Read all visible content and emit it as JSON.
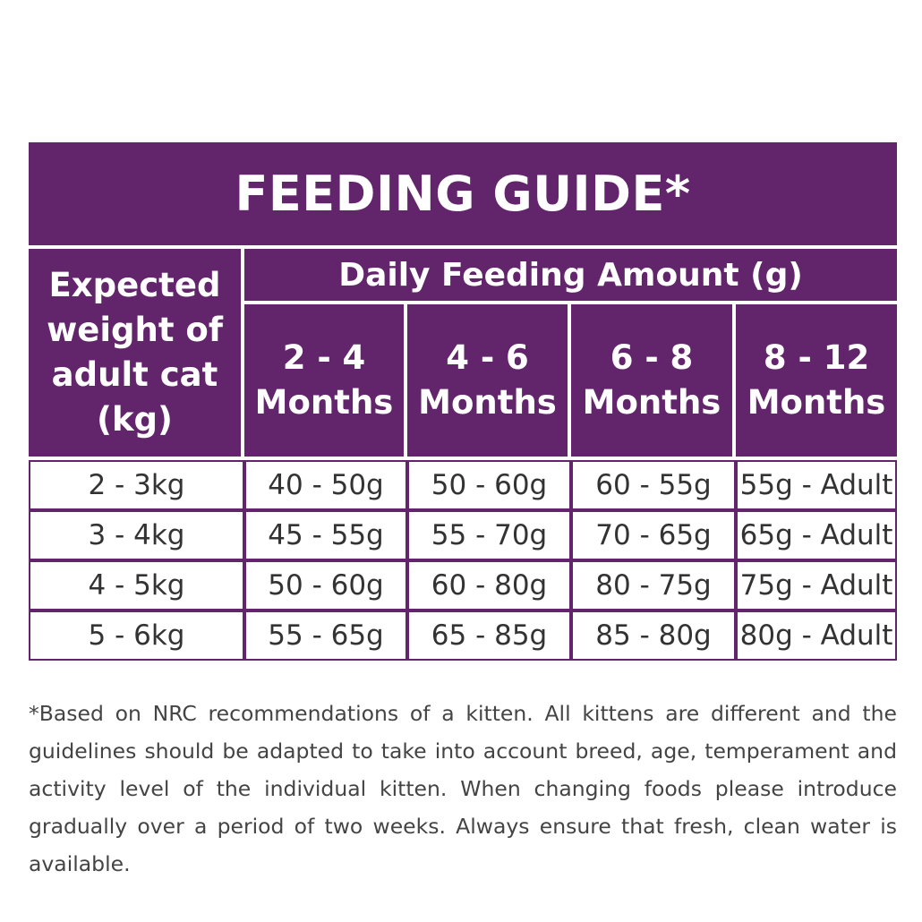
{
  "title": "FEEDING GUIDE*",
  "header": {
    "weight_label_lines": [
      "Expected",
      "weight of",
      "adult cat",
      "(kg)"
    ],
    "daily_label": "Daily Feeding Amount (g)",
    "ages": [
      {
        "range": "2 - 4",
        "unit": "Months"
      },
      {
        "range": "4 - 6",
        "unit": "Months"
      },
      {
        "range": "6 - 8",
        "unit": "Months"
      },
      {
        "range": "8 - 12",
        "unit": "Months"
      }
    ]
  },
  "rows": [
    {
      "weight": "2 - 3kg",
      "amounts": [
        "40 - 50g",
        "50 - 60g",
        "60 - 55g",
        "55g - Adult"
      ]
    },
    {
      "weight": "3 - 4kg",
      "amounts": [
        "45 - 55g",
        "55 - 70g",
        "70 - 65g",
        "65g - Adult"
      ]
    },
    {
      "weight": "4 - 5kg",
      "amounts": [
        "50 - 60g",
        "60 - 80g",
        "80 - 75g",
        "75g - Adult"
      ]
    },
    {
      "weight": "5 - 6kg",
      "amounts": [
        "55 - 65g",
        "65 - 85g",
        "85 - 80g",
        "80g - Adult"
      ]
    }
  ],
  "footnote": "*Based on NRC recommendations of a kitten. All kittens are different and the guidelines should be adapted to take into account breed, age, temperament and activity level of the individual kitten. When changing foods please introduce gradually over a period of two weeks. Always ensure that fresh, clean water is available.",
  "colors": {
    "accent": "#62256b",
    "text": "#333333",
    "background": "#ffffff"
  }
}
